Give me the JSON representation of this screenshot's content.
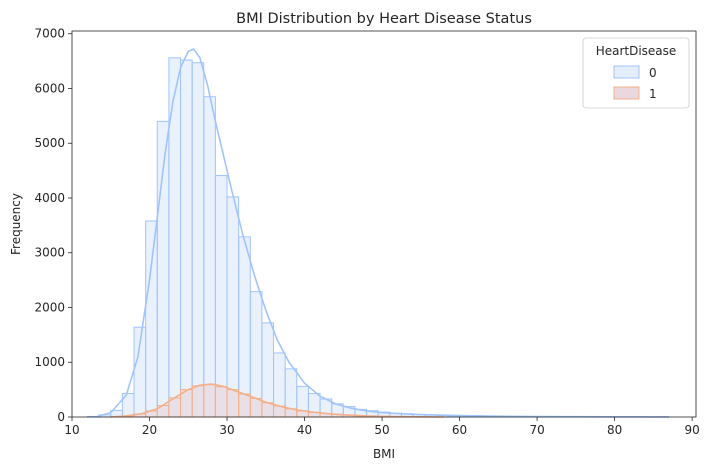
{
  "chart_data": {
    "type": "histogram",
    "title": "BMI Distribution by Heart Disease Status",
    "xlabel": "BMI",
    "ylabel": "Frequency",
    "xlim": [
      10.0,
      90.5
    ],
    "ylim": [
      0,
      7050
    ],
    "xticks": [
      10,
      20,
      30,
      40,
      50,
      60,
      70,
      80,
      90
    ],
    "yticks": [
      0,
      1000,
      2000,
      3000,
      4000,
      5000,
      6000,
      7000
    ],
    "grid": false,
    "legend": {
      "title": "HeartDisease",
      "placement": "top-right"
    },
    "element": "step",
    "kde": true,
    "series": [
      {
        "name": "0",
        "color": "#a1c4fd",
        "fill": "#e4eefc",
        "bins": [
          [
            12.0,
            13.5,
            10
          ],
          [
            13.5,
            15.0,
            40
          ],
          [
            15.0,
            16.5,
            120
          ],
          [
            16.5,
            18.0,
            430
          ],
          [
            18.0,
            19.5,
            1640
          ],
          [
            19.5,
            21.0,
            3580
          ],
          [
            21.0,
            22.5,
            5400
          ],
          [
            22.5,
            24.0,
            6560
          ],
          [
            24.0,
            25.5,
            6520
          ],
          [
            25.5,
            27.0,
            6470
          ],
          [
            27.0,
            28.5,
            5850
          ],
          [
            28.5,
            30.0,
            4410
          ],
          [
            30.0,
            31.5,
            4020
          ],
          [
            31.5,
            33.0,
            3290
          ],
          [
            33.0,
            34.5,
            2290
          ],
          [
            34.5,
            36.0,
            1720
          ],
          [
            36.0,
            37.5,
            1170
          ],
          [
            37.5,
            39.0,
            880
          ],
          [
            39.0,
            40.5,
            560
          ],
          [
            40.5,
            42.0,
            430
          ],
          [
            42.0,
            43.5,
            330
          ],
          [
            43.5,
            45.0,
            240
          ],
          [
            45.0,
            46.5,
            190
          ],
          [
            46.5,
            48.0,
            140
          ],
          [
            48.0,
            49.5,
            115
          ],
          [
            49.5,
            51.0,
            90
          ],
          [
            51.0,
            52.5,
            70
          ],
          [
            52.5,
            54.0,
            60
          ],
          [
            54.0,
            55.5,
            45
          ],
          [
            55.5,
            57.0,
            35
          ],
          [
            57.0,
            58.5,
            28
          ],
          [
            58.5,
            60.0,
            22
          ],
          [
            60.0,
            61.5,
            18
          ],
          [
            61.5,
            63.0,
            14
          ],
          [
            63.0,
            64.5,
            11
          ],
          [
            64.5,
            66.0,
            9
          ],
          [
            66.0,
            67.5,
            8
          ],
          [
            67.5,
            69.0,
            7
          ],
          [
            69.0,
            70.5,
            6
          ],
          [
            70.5,
            72.0,
            5
          ],
          [
            72.0,
            73.5,
            5
          ],
          [
            73.5,
            75.0,
            4
          ],
          [
            75.0,
            76.5,
            4
          ],
          [
            76.5,
            78.0,
            3
          ],
          [
            78.0,
            79.5,
            3
          ],
          [
            79.5,
            81.0,
            2
          ],
          [
            81.0,
            82.5,
            2
          ],
          [
            82.5,
            84.0,
            2
          ],
          [
            84.0,
            85.5,
            1
          ],
          [
            85.5,
            87.0,
            1
          ]
        ],
        "kde": [
          [
            13,
            0
          ],
          [
            15,
            80
          ],
          [
            17,
            400
          ],
          [
            18.5,
            1100
          ],
          [
            20,
            2500
          ],
          [
            21,
            3650
          ],
          [
            22,
            4800
          ],
          [
            23,
            5750
          ],
          [
            24,
            6380
          ],
          [
            25,
            6680
          ],
          [
            25.7,
            6720
          ],
          [
            26.5,
            6560
          ],
          [
            27.5,
            6050
          ],
          [
            28.5,
            5400
          ],
          [
            29.5,
            4800
          ],
          [
            30.5,
            4200
          ],
          [
            32,
            3350
          ],
          [
            33.5,
            2600
          ],
          [
            35,
            1950
          ],
          [
            36.5,
            1400
          ],
          [
            38,
            1000
          ],
          [
            40,
            620
          ],
          [
            42,
            380
          ],
          [
            44,
            240
          ],
          [
            46,
            160
          ],
          [
            48,
            110
          ],
          [
            50,
            80
          ],
          [
            53,
            55
          ],
          [
            56,
            40
          ],
          [
            60,
            25
          ],
          [
            65,
            15
          ],
          [
            70,
            9
          ],
          [
            75,
            6
          ],
          [
            80,
            4
          ],
          [
            85,
            2
          ],
          [
            87,
            1
          ]
        ]
      },
      {
        "name": "1",
        "color": "#f4b08a",
        "fill": "#ead8de",
        "bins": [
          [
            15.0,
            16.5,
            5
          ],
          [
            16.5,
            18.0,
            20
          ],
          [
            18.0,
            19.5,
            55
          ],
          [
            19.5,
            21.0,
            110
          ],
          [
            21.0,
            22.5,
            210
          ],
          [
            22.5,
            24.0,
            350
          ],
          [
            24.0,
            25.5,
            500
          ],
          [
            25.5,
            27.0,
            570
          ],
          [
            27.0,
            28.5,
            590
          ],
          [
            28.5,
            30.0,
            550
          ],
          [
            30.0,
            31.5,
            500
          ],
          [
            31.5,
            33.0,
            420
          ],
          [
            33.0,
            34.5,
            340
          ],
          [
            34.5,
            36.0,
            260
          ],
          [
            36.0,
            37.5,
            200
          ],
          [
            37.5,
            39.0,
            150
          ],
          [
            39.0,
            40.5,
            110
          ],
          [
            40.5,
            42.0,
            85
          ],
          [
            42.0,
            43.5,
            65
          ],
          [
            43.5,
            45.0,
            50
          ],
          [
            45.0,
            46.5,
            35
          ],
          [
            46.5,
            48.0,
            25
          ],
          [
            48.0,
            49.5,
            18
          ],
          [
            49.5,
            51.0,
            12
          ],
          [
            51.0,
            52.5,
            8
          ],
          [
            52.5,
            54.0,
            5
          ],
          [
            54.0,
            55.5,
            3
          ]
        ],
        "kde": [
          [
            15,
            0
          ],
          [
            17,
            20
          ],
          [
            19,
            60
          ],
          [
            21,
            150
          ],
          [
            23,
            330
          ],
          [
            25,
            500
          ],
          [
            26.5,
            580
          ],
          [
            28,
            600
          ],
          [
            29.5,
            560
          ],
          [
            31,
            480
          ],
          [
            33,
            380
          ],
          [
            35,
            270
          ],
          [
            37,
            190
          ],
          [
            39,
            130
          ],
          [
            41,
            90
          ],
          [
            43,
            60
          ],
          [
            45,
            40
          ],
          [
            48,
            20
          ],
          [
            51,
            10
          ],
          [
            55,
            4
          ],
          [
            58,
            0
          ]
        ]
      }
    ]
  }
}
